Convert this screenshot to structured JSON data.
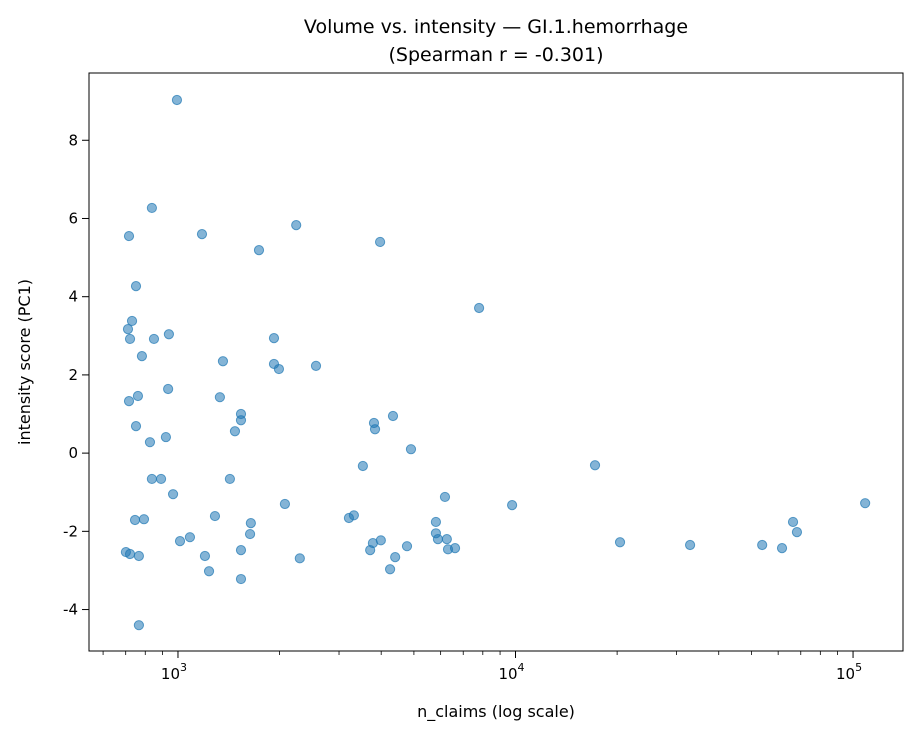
{
  "chart_data": {
    "type": "scatter",
    "title": "Volume vs. intensity — GI.1.hemorrhage",
    "subtitle": "(Spearman r = -0.301)",
    "xlabel": "n_claims (log scale)",
    "ylabel": "intensity score (PC1)",
    "x_scale": "log",
    "xlim": [
      545,
      140600
    ],
    "ylim": [
      -5.06,
      9.72
    ],
    "x_ticks": [
      {
        "value": 1000,
        "base": "10",
        "exp": "3"
      },
      {
        "value": 10000,
        "base": "10",
        "exp": "4"
      },
      {
        "value": 100000,
        "base": "10",
        "exp": "5"
      }
    ],
    "y_ticks": [
      -4,
      -2,
      0,
      2,
      4,
      6,
      8
    ],
    "grid": false,
    "color": "#1f77b4",
    "alpha": 0.55,
    "points": [
      [
        993,
        9.03
      ],
      [
        837,
        6.27
      ],
      [
        716,
        5.55
      ],
      [
        1178,
        5.6
      ],
      [
        2240,
        5.83
      ],
      [
        1738,
        5.19
      ],
      [
        3970,
        5.4
      ],
      [
        751,
        4.27
      ],
      [
        7800,
        3.71
      ],
      [
        731,
        3.38
      ],
      [
        711,
        3.17
      ],
      [
        721,
        2.92
      ],
      [
        940,
        3.04
      ],
      [
        849,
        2.92
      ],
      [
        1925,
        2.94
      ],
      [
        782,
        2.48
      ],
      [
        1359,
        2.35
      ],
      [
        1925,
        2.28
      ],
      [
        1991,
        2.15
      ],
      [
        2564,
        2.23
      ],
      [
        935,
        1.64
      ],
      [
        761,
        1.46
      ],
      [
        1331,
        1.43
      ],
      [
        716,
        1.33
      ],
      [
        1537,
        1.0
      ],
      [
        1537,
        0.84
      ],
      [
        4335,
        0.95
      ],
      [
        3808,
        0.77
      ],
      [
        3835,
        0.61
      ],
      [
        751,
        0.69
      ],
      [
        1475,
        0.56
      ],
      [
        921,
        0.41
      ],
      [
        826,
        0.28
      ],
      [
        4901,
        0.1
      ],
      [
        3530,
        -0.33
      ],
      [
        17200,
        -0.31
      ],
      [
        837,
        -0.66
      ],
      [
        891,
        -0.66
      ],
      [
        1425,
        -0.66
      ],
      [
        967,
        -1.05
      ],
      [
        6180,
        -1.12
      ],
      [
        2074,
        -1.3
      ],
      [
        9770,
        -1.33
      ],
      [
        108600,
        -1.28
      ],
      [
        1287,
        -1.61
      ],
      [
        3210,
        -1.66
      ],
      [
        3320,
        -1.59
      ],
      [
        746,
        -1.71
      ],
      [
        793,
        -1.69
      ],
      [
        1644,
        -1.79
      ],
      [
        5810,
        -1.76
      ],
      [
        66400,
        -1.76
      ],
      [
        68200,
        -2.02
      ],
      [
        5810,
        -2.05
      ],
      [
        1635,
        -2.07
      ],
      [
        1085,
        -2.15
      ],
      [
        5890,
        -2.2
      ],
      [
        6260,
        -2.2
      ],
      [
        1014,
        -2.25
      ],
      [
        3990,
        -2.23
      ],
      [
        20400,
        -2.28
      ],
      [
        3780,
        -2.3
      ],
      [
        32900,
        -2.35
      ],
      [
        53800,
        -2.35
      ],
      [
        4770,
        -2.38
      ],
      [
        6620,
        -2.43
      ],
      [
        6310,
        -2.46
      ],
      [
        61600,
        -2.43
      ],
      [
        3710,
        -2.48
      ],
      [
        1537,
        -2.48
      ],
      [
        701,
        -2.53
      ],
      [
        721,
        -2.58
      ],
      [
        766,
        -2.63
      ],
      [
        1202,
        -2.63
      ],
      [
        4400,
        -2.66
      ],
      [
        2296,
        -2.69
      ],
      [
        4250,
        -2.97
      ],
      [
        1236,
        -3.02
      ],
      [
        1537,
        -3.22
      ],
      [
        766,
        -4.4
      ]
    ]
  }
}
